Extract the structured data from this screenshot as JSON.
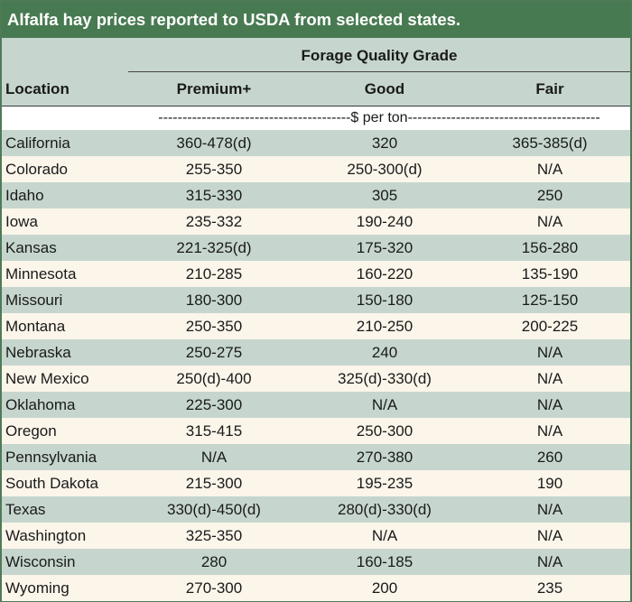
{
  "title": "Alfalfa hay prices reported to USDA from selected states.",
  "header": {
    "group_title": "Forage Quality Grade",
    "location": "Location",
    "columns": [
      "Premium+",
      "Good",
      "Fair"
    ]
  },
  "units": "----------------------------------------$ per ton----------------------------------------",
  "rows": [
    {
      "location": "California",
      "premium": "360-478(d)",
      "good": "320",
      "fair": "365-385(d)"
    },
    {
      "location": "Colorado",
      "premium": "255-350",
      "good": "250-300(d)",
      "fair": "N/A"
    },
    {
      "location": "Idaho",
      "premium": "315-330",
      "good": "305",
      "fair": "250"
    },
    {
      "location": "Iowa",
      "premium": "235-332",
      "good": "190-240",
      "fair": "N/A"
    },
    {
      "location": "Kansas",
      "premium": "221-325(d)",
      "good": "175-320",
      "fair": "156-280"
    },
    {
      "location": "Minnesota",
      "premium": "210-285",
      "good": "160-220",
      "fair": "135-190"
    },
    {
      "location": "Missouri",
      "premium": "180-300",
      "good": "150-180",
      "fair": "125-150"
    },
    {
      "location": "Montana",
      "premium": "250-350",
      "good": "210-250",
      "fair": "200-225"
    },
    {
      "location": "Nebraska",
      "premium": "250-275",
      "good": "240",
      "fair": "N/A"
    },
    {
      "location": "New Mexico",
      "premium": "250(d)-400",
      "good": "325(d)-330(d)",
      "fair": "N/A"
    },
    {
      "location": "Oklahoma",
      "premium": "225-300",
      "good": "N/A",
      "fair": "N/A"
    },
    {
      "location": "Oregon",
      "premium": "315-415",
      "good": "250-300",
      "fair": "N/A"
    },
    {
      "location": "Pennsylvania",
      "premium": "N/A",
      "good": "270-380",
      "fair": "260"
    },
    {
      "location": "South Dakota",
      "premium": "215-300",
      "good": "195-235",
      "fair": "190"
    },
    {
      "location": "Texas",
      "premium": "330(d)-450(d)",
      "good": "280(d)-330(d)",
      "fair": "N/A"
    },
    {
      "location": "Washington",
      "premium": "325-350",
      "good": "N/A",
      "fair": "N/A"
    },
    {
      "location": "Wisconsin",
      "premium": "280",
      "good": "160-185",
      "fair": "N/A"
    },
    {
      "location": "Wyoming",
      "premium": "270-300",
      "good": "200",
      "fair": "235"
    }
  ],
  "colors": {
    "title_bg": "#487a52",
    "band_green": "#c6d6ce",
    "band_cream": "#fbf5ea"
  }
}
